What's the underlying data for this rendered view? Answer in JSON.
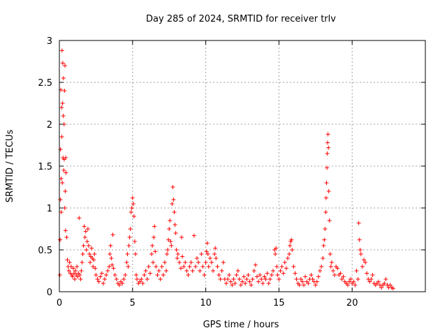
{
  "chart_data": {
    "type": "scatter",
    "title": "Day 285 of 2024, SRMTID for receiver trlv",
    "xlabel": "GPS time / hours",
    "ylabel": "SRMTID / TECUs",
    "xlim": [
      0,
      25
    ],
    "ylim": [
      0,
      3
    ],
    "xticks": [
      0,
      5,
      10,
      15,
      20
    ],
    "xtick_labels": [
      "0",
      "5",
      "10",
      "15",
      "20"
    ],
    "yticks": [
      0,
      0.5,
      1,
      1.5,
      2,
      2.5,
      3
    ],
    "ytick_labels": [
      "0",
      "0.5",
      "1",
      "1.5",
      "2",
      "2.5",
      "3"
    ],
    "grid": true,
    "marker": "+",
    "series": [
      {
        "name": "SRMTID",
        "color": "#ff0000",
        "points": [
          [
            0.03,
            0.2
          ],
          [
            0.05,
            0.62
          ],
          [
            0.07,
            1.1
          ],
          [
            0.08,
            1.7
          ],
          [
            0.1,
            2.41
          ],
          [
            0.12,
            1.35
          ],
          [
            0.13,
            0.95
          ],
          [
            0.15,
            2.2
          ],
          [
            0.17,
            1.85
          ],
          [
            0.18,
            2.88
          ],
          [
            0.2,
            1.3
          ],
          [
            0.22,
            2.25
          ],
          [
            0.23,
            2.73
          ],
          [
            0.25,
            1.6
          ],
          [
            0.27,
            2.1
          ],
          [
            0.28,
            2.55
          ],
          [
            0.3,
            1.45
          ],
          [
            0.32,
            2.0
          ],
          [
            0.33,
            1.58
          ],
          [
            0.35,
            2.4
          ],
          [
            0.37,
            1.0
          ],
          [
            0.38,
            2.7
          ],
          [
            0.4,
            1.2
          ],
          [
            0.42,
            0.73
          ],
          [
            0.43,
            1.6
          ],
          [
            0.45,
            1.42
          ],
          [
            0.5,
            0.65
          ],
          [
            0.55,
            0.38
          ],
          [
            0.6,
            0.3
          ],
          [
            0.65,
            0.25
          ],
          [
            0.7,
            0.35
          ],
          [
            0.75,
            0.22
          ],
          [
            0.8,
            0.3
          ],
          [
            0.85,
            0.2
          ],
          [
            0.9,
            0.18
          ],
          [
            0.95,
            0.28
          ],
          [
            1.0,
            0.22
          ],
          [
            1.05,
            0.15
          ],
          [
            1.1,
            0.25
          ],
          [
            1.15,
            0.2
          ],
          [
            1.2,
            0.3
          ],
          [
            1.25,
            0.18
          ],
          [
            1.3,
            0.22
          ],
          [
            1.35,
            0.88
          ],
          [
            1.4,
            0.2
          ],
          [
            1.45,
            0.15
          ],
          [
            1.5,
            0.25
          ],
          [
            1.55,
            0.35
          ],
          [
            1.6,
            0.45
          ],
          [
            1.65,
            0.55
          ],
          [
            1.7,
            0.78
          ],
          [
            1.75,
            0.65
          ],
          [
            1.8,
            0.72
          ],
          [
            1.85,
            0.5
          ],
          [
            1.9,
            0.6
          ],
          [
            1.95,
            0.75
          ],
          [
            2.0,
            0.55
          ],
          [
            2.05,
            0.45
          ],
          [
            2.1,
            0.35
          ],
          [
            2.15,
            0.42
          ],
          [
            2.2,
            0.52
          ],
          [
            2.25,
            0.4
          ],
          [
            2.3,
            0.3
          ],
          [
            2.35,
            0.38
          ],
          [
            2.4,
            0.45
          ],
          [
            2.45,
            0.28
          ],
          [
            2.5,
            0.2
          ],
          [
            2.6,
            0.15
          ],
          [
            2.7,
            0.12
          ],
          [
            2.8,
            0.18
          ],
          [
            2.9,
            0.22
          ],
          [
            3.0,
            0.1
          ],
          [
            3.1,
            0.15
          ],
          [
            3.2,
            0.2
          ],
          [
            3.3,
            0.25
          ],
          [
            3.4,
            0.3
          ],
          [
            3.45,
            0.45
          ],
          [
            3.5,
            0.55
          ],
          [
            3.55,
            0.4
          ],
          [
            3.6,
            0.32
          ],
          [
            3.65,
            0.68
          ],
          [
            3.7,
            0.28
          ],
          [
            3.8,
            0.2
          ],
          [
            3.9,
            0.15
          ],
          [
            4.0,
            0.1
          ],
          [
            4.1,
            0.08
          ],
          [
            4.2,
            0.12
          ],
          [
            4.3,
            0.1
          ],
          [
            4.4,
            0.15
          ],
          [
            4.5,
            0.2
          ],
          [
            4.6,
            0.35
          ],
          [
            4.65,
            0.45
          ],
          [
            4.7,
            0.3
          ],
          [
            4.75,
            0.55
          ],
          [
            4.8,
            0.65
          ],
          [
            4.85,
            0.75
          ],
          [
            4.9,
            0.95
          ],
          [
            4.95,
            1.0
          ],
          [
            5.0,
            1.12
          ],
          [
            5.05,
            1.05
          ],
          [
            5.1,
            0.9
          ],
          [
            5.15,
            0.6
          ],
          [
            5.2,
            0.45
          ],
          [
            5.25,
            0.2
          ],
          [
            5.3,
            0.15
          ],
          [
            5.4,
            0.1
          ],
          [
            5.5,
            0.12
          ],
          [
            5.6,
            0.15
          ],
          [
            5.7,
            0.1
          ],
          [
            5.8,
            0.2
          ],
          [
            5.9,
            0.25
          ],
          [
            6.0,
            0.15
          ],
          [
            6.1,
            0.3
          ],
          [
            6.2,
            0.22
          ],
          [
            6.3,
            0.45
          ],
          [
            6.35,
            0.55
          ],
          [
            6.4,
            0.35
          ],
          [
            6.45,
            0.65
          ],
          [
            6.5,
            0.78
          ],
          [
            6.55,
            0.48
          ],
          [
            6.6,
            0.3
          ],
          [
            6.7,
            0.2
          ],
          [
            6.8,
            0.25
          ],
          [
            6.9,
            0.15
          ],
          [
            7.0,
            0.3
          ],
          [
            7.1,
            0.2
          ],
          [
            7.2,
            0.35
          ],
          [
            7.3,
            0.25
          ],
          [
            7.35,
            0.45
          ],
          [
            7.4,
            0.5
          ],
          [
            7.45,
            0.62
          ],
          [
            7.5,
            0.75
          ],
          [
            7.55,
            0.85
          ],
          [
            7.6,
            0.6
          ],
          [
            7.65,
            0.55
          ],
          [
            7.7,
            1.05
          ],
          [
            7.75,
            1.25
          ],
          [
            7.8,
            1.1
          ],
          [
            7.85,
            0.95
          ],
          [
            7.9,
            0.8
          ],
          [
            7.95,
            0.7
          ],
          [
            8.0,
            0.5
          ],
          [
            8.05,
            0.4
          ],
          [
            8.1,
            0.45
          ],
          [
            8.2,
            0.35
          ],
          [
            8.3,
            0.28
          ],
          [
            8.35,
            0.65
          ],
          [
            8.4,
            0.42
          ],
          [
            8.5,
            0.3
          ],
          [
            8.6,
            0.35
          ],
          [
            8.7,
            0.25
          ],
          [
            8.8,
            0.2
          ],
          [
            8.9,
            0.3
          ],
          [
            9.0,
            0.35
          ],
          [
            9.1,
            0.25
          ],
          [
            9.2,
            0.67
          ],
          [
            9.3,
            0.3
          ],
          [
            9.4,
            0.4
          ],
          [
            9.5,
            0.35
          ],
          [
            9.6,
            0.25
          ],
          [
            9.7,
            0.45
          ],
          [
            9.8,
            0.3
          ],
          [
            9.9,
            0.2
          ],
          [
            10.0,
            0.35
          ],
          [
            10.05,
            0.48
          ],
          [
            10.1,
            0.58
          ],
          [
            10.15,
            0.45
          ],
          [
            10.2,
            0.3
          ],
          [
            10.3,
            0.4
          ],
          [
            10.4,
            0.35
          ],
          [
            10.5,
            0.25
          ],
          [
            10.6,
            0.45
          ],
          [
            10.65,
            0.52
          ],
          [
            10.7,
            0.4
          ],
          [
            10.8,
            0.3
          ],
          [
            10.9,
            0.2
          ],
          [
            11.0,
            0.15
          ],
          [
            11.1,
            0.25
          ],
          [
            11.2,
            0.35
          ],
          [
            11.3,
            0.15
          ],
          [
            11.4,
            0.1
          ],
          [
            11.5,
            0.15
          ],
          [
            11.6,
            0.2
          ],
          [
            11.7,
            0.12
          ],
          [
            11.8,
            0.08
          ],
          [
            11.9,
            0.15
          ],
          [
            12.0,
            0.1
          ],
          [
            12.1,
            0.2
          ],
          [
            12.2,
            0.25
          ],
          [
            12.3,
            0.15
          ],
          [
            12.4,
            0.08
          ],
          [
            12.5,
            0.12
          ],
          [
            12.6,
            0.18
          ],
          [
            12.7,
            0.1
          ],
          [
            12.8,
            0.15
          ],
          [
            12.9,
            0.2
          ],
          [
            13.0,
            0.12
          ],
          [
            13.1,
            0.08
          ],
          [
            13.2,
            0.15
          ],
          [
            13.3,
            0.25
          ],
          [
            13.4,
            0.32
          ],
          [
            13.5,
            0.18
          ],
          [
            13.6,
            0.12
          ],
          [
            13.7,
            0.2
          ],
          [
            13.8,
            0.15
          ],
          [
            13.9,
            0.1
          ],
          [
            14.0,
            0.18
          ],
          [
            14.1,
            0.15
          ],
          [
            14.2,
            0.22
          ],
          [
            14.3,
            0.1
          ],
          [
            14.4,
            0.15
          ],
          [
            14.5,
            0.2
          ],
          [
            14.6,
            0.25
          ],
          [
            14.7,
            0.5
          ],
          [
            14.75,
            0.45
          ],
          [
            14.8,
            0.52
          ],
          [
            14.85,
            0.3
          ],
          [
            14.9,
            0.2
          ],
          [
            15.0,
            0.15
          ],
          [
            15.1,
            0.25
          ],
          [
            15.2,
            0.3
          ],
          [
            15.3,
            0.22
          ],
          [
            15.4,
            0.35
          ],
          [
            15.5,
            0.28
          ],
          [
            15.6,
            0.4
          ],
          [
            15.7,
            0.45
          ],
          [
            15.75,
            0.55
          ],
          [
            15.8,
            0.6
          ],
          [
            15.85,
            0.62
          ],
          [
            15.9,
            0.5
          ],
          [
            16.0,
            0.3
          ],
          [
            16.1,
            0.22
          ],
          [
            16.2,
            0.15
          ],
          [
            16.3,
            0.1
          ],
          [
            16.4,
            0.08
          ],
          [
            16.5,
            0.15
          ],
          [
            16.6,
            0.12
          ],
          [
            16.7,
            0.08
          ],
          [
            16.8,
            0.18
          ],
          [
            16.9,
            0.12
          ],
          [
            17.0,
            0.1
          ],
          [
            17.1,
            0.15
          ],
          [
            17.2,
            0.2
          ],
          [
            17.3,
            0.15
          ],
          [
            17.4,
            0.12
          ],
          [
            17.5,
            0.08
          ],
          [
            17.6,
            0.12
          ],
          [
            17.7,
            0.18
          ],
          [
            17.8,
            0.25
          ],
          [
            17.9,
            0.3
          ],
          [
            18.0,
            0.4
          ],
          [
            18.05,
            0.55
          ],
          [
            18.1,
            0.62
          ],
          [
            18.15,
            0.75
          ],
          [
            18.2,
            0.95
          ],
          [
            18.22,
            1.12
          ],
          [
            18.25,
            1.3
          ],
          [
            18.28,
            1.48
          ],
          [
            18.3,
            1.65
          ],
          [
            18.32,
            1.78
          ],
          [
            18.35,
            1.88
          ],
          [
            18.38,
            1.72
          ],
          [
            18.4,
            1.2
          ],
          [
            18.45,
            0.85
          ],
          [
            18.5,
            0.45
          ],
          [
            18.55,
            0.3
          ],
          [
            18.6,
            0.35
          ],
          [
            18.7,
            0.25
          ],
          [
            18.8,
            0.2
          ],
          [
            18.9,
            0.3
          ],
          [
            19.0,
            0.28
          ],
          [
            19.1,
            0.2
          ],
          [
            19.2,
            0.22
          ],
          [
            19.3,
            0.15
          ],
          [
            19.4,
            0.18
          ],
          [
            19.5,
            0.12
          ],
          [
            19.6,
            0.1
          ],
          [
            19.7,
            0.08
          ],
          [
            19.8,
            0.12
          ],
          [
            19.9,
            0.15
          ],
          [
            20.0,
            0.1
          ],
          [
            20.1,
            0.12
          ],
          [
            20.2,
            0.08
          ],
          [
            20.3,
            0.25
          ],
          [
            20.4,
            0.15
          ],
          [
            20.45,
            0.82
          ],
          [
            20.5,
            0.62
          ],
          [
            20.55,
            0.5
          ],
          [
            20.6,
            0.45
          ],
          [
            20.7,
            0.3
          ],
          [
            20.8,
            0.38
          ],
          [
            20.9,
            0.35
          ],
          [
            21.0,
            0.22
          ],
          [
            21.1,
            0.15
          ],
          [
            21.2,
            0.12
          ],
          [
            21.3,
            0.15
          ],
          [
            21.4,
            0.2
          ],
          [
            21.5,
            0.1
          ],
          [
            21.6,
            0.08
          ],
          [
            21.7,
            0.1
          ],
          [
            21.8,
            0.12
          ],
          [
            21.9,
            0.08
          ],
          [
            22.0,
            0.05
          ],
          [
            22.1,
            0.08
          ],
          [
            22.2,
            0.1
          ],
          [
            22.3,
            0.15
          ],
          [
            22.4,
            0.08
          ],
          [
            22.5,
            0.05
          ],
          [
            22.6,
            0.08
          ],
          [
            22.7,
            0.05
          ],
          [
            22.8,
            0.04
          ]
        ]
      }
    ]
  }
}
